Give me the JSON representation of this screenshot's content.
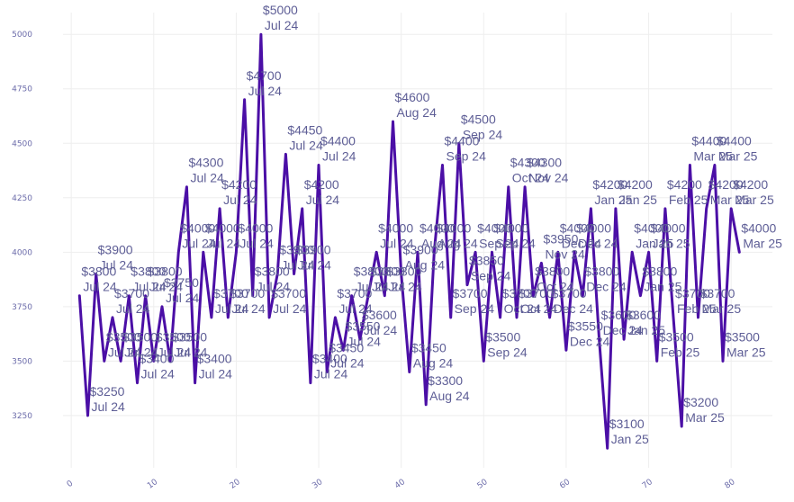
{
  "chart_data": {
    "type": "line",
    "title": "",
    "xlabel": "",
    "ylabel": "",
    "xlim": [
      -1,
      85
    ],
    "ylim": [
      3010,
      5100
    ],
    "grid": true,
    "legend": "none",
    "line_color": "#4b0fa6",
    "x_ticks": [
      0,
      10,
      20,
      30,
      40,
      50,
      60,
      70,
      80
    ],
    "y_ticks": [
      3250,
      3500,
      3750,
      4000,
      4250,
      4500,
      4750,
      5000
    ],
    "series": [
      {
        "points": [
          {
            "x": 1,
            "y": 3800,
            "price": "$3800",
            "date": "Jul 24"
          },
          {
            "x": 2,
            "y": 3250,
            "price": "$3250",
            "date": "Jul 24"
          },
          {
            "x": 3,
            "y": 3900,
            "price": "$3900",
            "date": "Jul 24"
          },
          {
            "x": 4,
            "y": 3500,
            "price": "$3500",
            "date": "Jul 24"
          },
          {
            "x": 5,
            "y": 3700,
            "price": "$3700",
            "date": "Jul 24"
          },
          {
            "x": 6,
            "y": 3500,
            "price": "$3500",
            "date": "Jul 24"
          },
          {
            "x": 7,
            "y": 3800,
            "price": "$3800",
            "date": "Jul 24"
          },
          {
            "x": 8,
            "y": 3400,
            "price": "$3400",
            "date": "Jul 24"
          },
          {
            "x": 9,
            "y": 3800,
            "price": "$3800",
            "date": "Jul 24"
          },
          {
            "x": 10,
            "y": 3500,
            "price": "$3500",
            "date": "Jul 24"
          },
          {
            "x": 11,
            "y": 3750,
            "price": "$3750",
            "date": "Jul 24"
          },
          {
            "x": 12,
            "y": 3500,
            "price": "$3500",
            "date": "Jul 24"
          },
          {
            "x": 13,
            "y": 4000,
            "price": "$4000",
            "date": "Jul 24"
          },
          {
            "x": 14,
            "y": 4300,
            "price": "$4300",
            "date": "Jul 24"
          },
          {
            "x": 15,
            "y": 3400,
            "price": "$3400",
            "date": "Jul 24"
          },
          {
            "x": 16,
            "y": 4000,
            "price": "$4000",
            "date": "Jul 24"
          },
          {
            "x": 17,
            "y": 3700,
            "price": "$3700",
            "date": "Jul 24"
          },
          {
            "x": 18,
            "y": 4200,
            "price": "$4200",
            "date": "Jul 24"
          },
          {
            "x": 19,
            "y": 3700,
            "price": "$3700",
            "date": "Jul 24"
          },
          {
            "x": 20,
            "y": 4000,
            "price": "$4000",
            "date": "Jul 24"
          },
          {
            "x": 21,
            "y": 4700,
            "price": "$4700",
            "date": "Jul 24"
          },
          {
            "x": 22,
            "y": 3800,
            "price": "$3800",
            "date": "Jul 24"
          },
          {
            "x": 23,
            "y": 5000,
            "price": "$5000",
            "date": "Jul 24"
          },
          {
            "x": 24,
            "y": 3700,
            "price": "$3700",
            "date": "Jul 24"
          },
          {
            "x": 25,
            "y": 3900,
            "price": "$3900",
            "date": "Jul 24"
          },
          {
            "x": 26,
            "y": 4450,
            "price": "$4450",
            "date": "Jul 24"
          },
          {
            "x": 27,
            "y": 3900,
            "price": "$3900",
            "date": "Jul 24"
          },
          {
            "x": 28,
            "y": 4200,
            "price": "$4200",
            "date": "Jul 24"
          },
          {
            "x": 29,
            "y": 3400,
            "price": "$3400",
            "date": "Jul 24"
          },
          {
            "x": 30,
            "y": 4400,
            "price": "$4400",
            "date": "Jul 24"
          },
          {
            "x": 31,
            "y": 3450,
            "price": "$3450",
            "date": "Jul 24"
          },
          {
            "x": 32,
            "y": 3700,
            "price": "$3700",
            "date": "Jul 24"
          },
          {
            "x": 33,
            "y": 3550,
            "price": "$3550",
            "date": "Jul 24"
          },
          {
            "x": 34,
            "y": 3800,
            "price": "$3800",
            "date": "Jul 24"
          },
          {
            "x": 35,
            "y": 3600,
            "price": "$3600",
            "date": "Jul 24"
          },
          {
            "x": 36,
            "y": 3800,
            "price": "$3800",
            "date": "Jul 24"
          },
          {
            "x": 37,
            "y": 4000,
            "price": "$4000",
            "date": "Jul 24"
          },
          {
            "x": 38,
            "y": 3800,
            "price": "$3800",
            "date": "Jul 24"
          },
          {
            "x": 39,
            "y": 4600,
            "price": "$4600",
            "date": "Aug 24"
          },
          {
            "x": 40,
            "y": 3900,
            "price": "$3900",
            "date": "Aug 24"
          },
          {
            "x": 41,
            "y": 3450,
            "price": "$3450",
            "date": "Aug 24"
          },
          {
            "x": 42,
            "y": 4000,
            "price": "$4000",
            "date": "Aug 24"
          },
          {
            "x": 43,
            "y": 3300,
            "price": "$3300",
            "date": "Aug 24"
          },
          {
            "x": 44,
            "y": 4000,
            "price": "$4000",
            "date": "Aug 24"
          },
          {
            "x": 45,
            "y": 4400,
            "price": "$4400",
            "date": "Sep 24"
          },
          {
            "x": 46,
            "y": 3700,
            "price": "$3700",
            "date": "Sep 24"
          },
          {
            "x": 47,
            "y": 4500,
            "price": "$4500",
            "date": "Sep 24"
          },
          {
            "x": 48,
            "y": 3850,
            "price": "$3850",
            "date": "Sep 24"
          },
          {
            "x": 49,
            "y": 4000,
            "price": "$4000",
            "date": "Sep 24"
          },
          {
            "x": 50,
            "y": 3500,
            "price": "$3500",
            "date": "Sep 24"
          },
          {
            "x": 51,
            "y": 4000,
            "price": "$4000",
            "date": "Sep 24"
          },
          {
            "x": 52,
            "y": 3700,
            "price": "$3700",
            "date": "Oct 24"
          },
          {
            "x": 53,
            "y": 4300,
            "price": "$4300",
            "date": "Oct 24"
          },
          {
            "x": 54,
            "y": 3700,
            "price": "$3700",
            "date": "Oct 24"
          },
          {
            "x": 55,
            "y": 4300,
            "price": "$4300",
            "date": "Nov 24"
          },
          {
            "x": 56,
            "y": 3800,
            "price": "$3800",
            "date": "Oct 24"
          },
          {
            "x": 57,
            "y": 3950,
            "price": "$3950",
            "date": "Nov 24"
          },
          {
            "x": 58,
            "y": 3700,
            "price": "$3700",
            "date": "Dec 24"
          },
          {
            "x": 59,
            "y": 4000,
            "price": "$4000",
            "date": "Dec 24"
          },
          {
            "x": 60,
            "y": 3550,
            "price": "$3550",
            "date": "Dec 24"
          },
          {
            "x": 61,
            "y": 4000,
            "price": "$4000",
            "date": "Dec 24"
          },
          {
            "x": 62,
            "y": 3800,
            "price": "$3800",
            "date": "Dec 24"
          },
          {
            "x": 63,
            "y": 4200,
            "price": "$4200",
            "date": "Jan 25"
          },
          {
            "x": 64,
            "y": 3600,
            "price": "$3600",
            "date": "Dec 24"
          },
          {
            "x": 65,
            "y": 3100,
            "price": "$3100",
            "date": "Jan 25"
          },
          {
            "x": 66,
            "y": 4200,
            "price": "$4200",
            "date": "Jan 25"
          },
          {
            "x": 67,
            "y": 3600,
            "price": "$3600",
            "date": "Jan 25"
          },
          {
            "x": 68,
            "y": 4000,
            "price": "$4000",
            "date": "Jan 25"
          },
          {
            "x": 69,
            "y": 3800,
            "price": "$3800",
            "date": "Jan 25"
          },
          {
            "x": 70,
            "y": 4000,
            "price": "$4000",
            "date": "Jan 25"
          },
          {
            "x": 71,
            "y": 3500,
            "price": "$3500",
            "date": "Feb 25"
          },
          {
            "x": 72,
            "y": 4200,
            "price": "$4200",
            "date": "Feb 25"
          },
          {
            "x": 73,
            "y": 3700,
            "price": "$3700",
            "date": "Feb 25"
          },
          {
            "x": 74,
            "y": 3200,
            "price": "$3200",
            "date": "Mar 25"
          },
          {
            "x": 75,
            "y": 4400,
            "price": "$4400",
            "date": "Mar 25"
          },
          {
            "x": 76,
            "y": 3700,
            "price": "$3700",
            "date": "Mar 25"
          },
          {
            "x": 77,
            "y": 4200,
            "price": "$4200",
            "date": "Mar 25"
          },
          {
            "x": 78,
            "y": 4400,
            "price": "$4400",
            "date": "Mar 25"
          },
          {
            "x": 79,
            "y": 3500,
            "price": "$3500",
            "date": "Mar 25"
          },
          {
            "x": 80,
            "y": 4200,
            "price": "$4200",
            "date": "Mar 25"
          },
          {
            "x": 81,
            "y": 4000,
            "price": "$4000",
            "date": "Mar 25"
          }
        ]
      }
    ]
  }
}
